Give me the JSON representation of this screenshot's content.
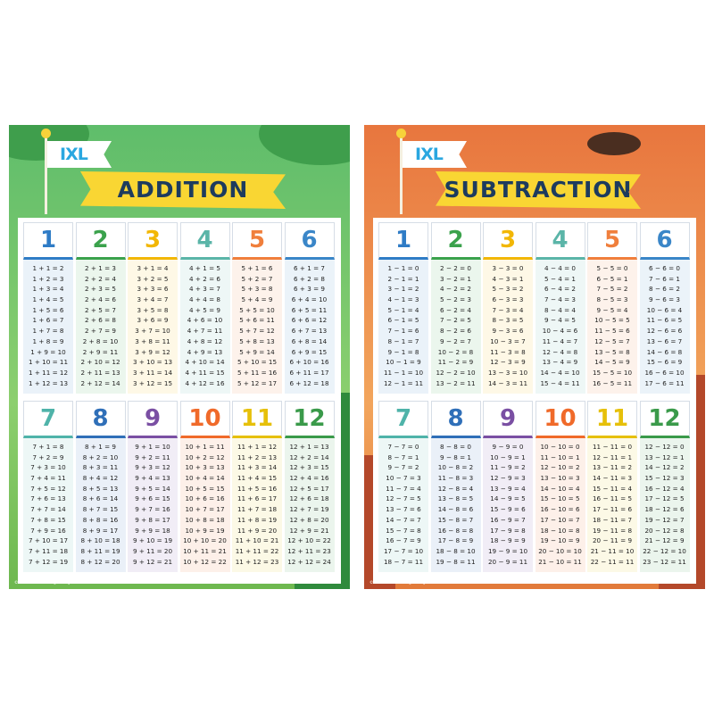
{
  "posters": [
    {
      "brand": "IXL",
      "title": "ADDITION",
      "copyright": "© 2024 IXL Learning. All rights reserved.",
      "tables": [
        {
          "number": 1,
          "facts": [
            "1 + 1 = 2",
            "1 + 2 = 3",
            "1 + 3 = 4",
            "1 + 4 = 5",
            "1 + 5 = 6",
            "1 + 6 = 7",
            "1 + 7 = 8",
            "1 + 8 = 9",
            "1 + 9 = 10",
            "1 + 10 = 11",
            "1 + 11 = 12",
            "1 + 12 = 13"
          ]
        },
        {
          "number": 2,
          "facts": [
            "2 + 1 = 3",
            "2 + 2 = 4",
            "2 + 3 = 5",
            "2 + 4 = 6",
            "2 + 5 = 7",
            "2 + 6 = 8",
            "2 + 7 = 9",
            "2 + 8 = 10",
            "2 + 9 = 11",
            "2 + 10 = 12",
            "2 + 11 = 13",
            "2 + 12 = 14"
          ]
        },
        {
          "number": 3,
          "facts": [
            "3 + 1 = 4",
            "3 + 2 = 5",
            "3 + 3 = 6",
            "3 + 4 = 7",
            "3 + 5 = 8",
            "3 + 6 = 9",
            "3 + 7 = 10",
            "3 + 8 = 11",
            "3 + 9 = 12",
            "3 + 10 = 13",
            "3 + 11 = 14",
            "3 + 12 = 15"
          ]
        },
        {
          "number": 4,
          "facts": [
            "4 + 1 = 5",
            "4 + 2 = 6",
            "4 + 3 = 7",
            "4 + 4 = 8",
            "4 + 5 = 9",
            "4 + 6 = 10",
            "4 + 7 = 11",
            "4 + 8 = 12",
            "4 + 9 = 13",
            "4 + 10 = 14",
            "4 + 11 = 15",
            "4 + 12 = 16"
          ]
        },
        {
          "number": 5,
          "facts": [
            "5 + 1 = 6",
            "5 + 2 = 7",
            "5 + 3 = 8",
            "5 + 4 = 9",
            "5 + 5 = 10",
            "5 + 6 = 11",
            "5 + 7 = 12",
            "5 + 8 = 13",
            "5 + 9 = 14",
            "5 + 10 = 15",
            "5 + 11 = 16",
            "5 + 12 = 17"
          ]
        },
        {
          "number": 6,
          "facts": [
            "6 + 1 = 7",
            "6 + 2 = 8",
            "6 + 3 = 9",
            "6 + 4 = 10",
            "6 + 5 = 11",
            "6 + 6 = 12",
            "6 + 7 = 13",
            "6 + 8 = 14",
            "6 + 9 = 15",
            "6 + 10 = 16",
            "6 + 11 = 17",
            "6 + 12 = 18"
          ]
        },
        {
          "number": 7,
          "facts": [
            "7 + 1 = 8",
            "7 + 2 = 9",
            "7 + 3 = 10",
            "7 + 4 = 11",
            "7 + 5 = 12",
            "7 + 6 = 13",
            "7 + 7 = 14",
            "7 + 8 = 15",
            "7 + 9 = 16",
            "7 + 10 = 17",
            "7 + 11 = 18",
            "7 + 12 = 19"
          ]
        },
        {
          "number": 8,
          "facts": [
            "8 + 1 = 9",
            "8 + 2 = 10",
            "8 + 3 = 11",
            "8 + 4 = 12",
            "8 + 5 = 13",
            "8 + 6 = 14",
            "8 + 7 = 15",
            "8 + 8 = 16",
            "8 + 9 = 17",
            "8 + 10 = 18",
            "8 + 11 = 19",
            "8 + 12 = 20"
          ]
        },
        {
          "number": 9,
          "facts": [
            "9 + 1 = 10",
            "9 + 2 = 11",
            "9 + 3 = 12",
            "9 + 4 = 13",
            "9 + 5 = 14",
            "9 + 6 = 15",
            "9 + 7 = 16",
            "9 + 8 = 17",
            "9 + 9 = 18",
            "9 + 10 = 19",
            "9 + 11 = 20",
            "9 + 12 = 21"
          ]
        },
        {
          "number": 10,
          "facts": [
            "10 + 1 = 11",
            "10 + 2 = 12",
            "10 + 3 = 13",
            "10 + 4 = 14",
            "10 + 5 = 15",
            "10 + 6 = 16",
            "10 + 7 = 17",
            "10 + 8 = 18",
            "10 + 9 = 19",
            "10 + 10 = 20",
            "10 + 11 = 21",
            "10 + 12 = 22"
          ]
        },
        {
          "number": 11,
          "facts": [
            "11 + 1 = 12",
            "11 + 2 = 13",
            "11 + 3 = 14",
            "11 + 4 = 15",
            "11 + 5 = 16",
            "11 + 6 = 17",
            "11 + 7 = 18",
            "11 + 8 = 19",
            "11 + 9 = 20",
            "11 + 10 = 21",
            "11 + 11 = 22",
            "11 + 12 = 23"
          ]
        },
        {
          "number": 12,
          "facts": [
            "12 + 1 = 13",
            "12 + 2 = 14",
            "12 + 3 = 15",
            "12 + 4 = 16",
            "12 + 5 = 17",
            "12 + 6 = 18",
            "12 + 7 = 19",
            "12 + 8 = 20",
            "12 + 9 = 21",
            "12 + 10 = 22",
            "12 + 11 = 23",
            "12 + 12 = 24"
          ]
        }
      ]
    },
    {
      "brand": "IXL",
      "title": "SUBTRACTION",
      "copyright": "© 2024 IXL Learning. All rights reserved.",
      "tables": [
        {
          "number": 1,
          "facts": [
            "1 − 1 = 0",
            "2 − 1 = 1",
            "3 − 1 = 2",
            "4 − 1 = 3",
            "5 − 1 = 4",
            "6 − 1 = 5",
            "7 − 1 = 6",
            "8 − 1 = 7",
            "9 − 1 = 8",
            "10 − 1 = 9",
            "11 − 1 = 10",
            "12 − 1 = 11"
          ]
        },
        {
          "number": 2,
          "facts": [
            "2 − 2 = 0",
            "3 − 2 = 1",
            "4 − 2 = 2",
            "5 − 2 = 3",
            "6 − 2 = 4",
            "7 − 2 = 5",
            "8 − 2 = 6",
            "9 − 2 = 7",
            "10 − 2 = 8",
            "11 − 2 = 9",
            "12 − 2 = 10",
            "13 − 2 = 11"
          ]
        },
        {
          "number": 3,
          "facts": [
            "3 − 3 = 0",
            "4 − 3 = 1",
            "5 − 3 = 2",
            "6 − 3 = 3",
            "7 − 3 = 4",
            "8 − 3 = 5",
            "9 − 3 = 6",
            "10 − 3 = 7",
            "11 − 3 = 8",
            "12 − 3 = 9",
            "13 − 3 = 10",
            "14 − 3 = 11"
          ]
        },
        {
          "number": 4,
          "facts": [
            "4 − 4 = 0",
            "5 − 4 = 1",
            "6 − 4 = 2",
            "7 − 4 = 3",
            "8 − 4 = 4",
            "9 − 4 = 5",
            "10 − 4 = 6",
            "11 − 4 = 7",
            "12 − 4 = 8",
            "13 − 4 = 9",
            "14 − 4 = 10",
            "15 − 4 = 11"
          ]
        },
        {
          "number": 5,
          "facts": [
            "5 − 5 = 0",
            "6 − 5 = 1",
            "7 − 5 = 2",
            "8 − 5 = 3",
            "9 − 5 = 4",
            "10 − 5 = 5",
            "11 − 5 = 6",
            "12 − 5 = 7",
            "13 − 5 = 8",
            "14 − 5 = 9",
            "15 − 5 = 10",
            "16 − 5 = 11"
          ]
        },
        {
          "number": 6,
          "facts": [
            "6 − 6 = 0",
            "7 − 6 = 1",
            "8 − 6 = 2",
            "9 − 6 = 3",
            "10 − 6 = 4",
            "11 − 6 = 5",
            "12 − 6 = 6",
            "13 − 6 = 7",
            "14 − 6 = 8",
            "15 − 6 = 9",
            "16 − 6 = 10",
            "17 − 6 = 11"
          ]
        },
        {
          "number": 7,
          "facts": [
            "7 − 7 = 0",
            "8 − 7 = 1",
            "9 − 7 = 2",
            "10 − 7 = 3",
            "11 − 7 = 4",
            "12 − 7 = 5",
            "13 − 7 = 6",
            "14 − 7 = 7",
            "15 − 7 = 8",
            "16 − 7 = 9",
            "17 − 7 = 10",
            "18 − 7 = 11"
          ]
        },
        {
          "number": 8,
          "facts": [
            "8 − 8 = 0",
            "9 − 8 = 1",
            "10 − 8 = 2",
            "11 − 8 = 3",
            "12 − 8 = 4",
            "13 − 8 = 5",
            "14 − 8 = 6",
            "15 − 8 = 7",
            "16 − 8 = 8",
            "17 − 8 = 9",
            "18 − 8 = 10",
            "19 − 8 = 11"
          ]
        },
        {
          "number": 9,
          "facts": [
            "9 − 9 = 0",
            "10 − 9 = 1",
            "11 − 9 = 2",
            "12 − 9 = 3",
            "13 − 9 = 4",
            "14 − 9 = 5",
            "15 − 9 = 6",
            "16 − 9 = 7",
            "17 − 9 = 8",
            "18 − 9 = 9",
            "19 − 9 = 10",
            "20 − 9 = 11"
          ]
        },
        {
          "number": 10,
          "facts": [
            "10 − 10 = 0",
            "11 − 10 = 1",
            "12 − 10 = 2",
            "13 − 10 = 3",
            "14 − 10 = 4",
            "15 − 10 = 5",
            "16 − 10 = 6",
            "17 − 10 = 7",
            "18 − 10 = 8",
            "19 − 10 = 9",
            "20 − 10 = 10",
            "21 − 10 = 11"
          ]
        },
        {
          "number": 11,
          "facts": [
            "11 − 11 = 0",
            "12 − 11 = 1",
            "13 − 11 = 2",
            "14 − 11 = 3",
            "15 − 11 = 4",
            "16 − 11 = 5",
            "17 − 11 = 6",
            "18 − 11 = 7",
            "19 − 11 = 8",
            "20 − 11 = 9",
            "21 − 11 = 10",
            "22 − 11 = 11"
          ]
        },
        {
          "number": 12,
          "facts": [
            "12 − 12 = 0",
            "13 − 12 = 1",
            "14 − 12 = 2",
            "15 − 12 = 3",
            "16 − 12 = 4",
            "17 − 12 = 5",
            "18 − 12 = 6",
            "19 − 12 = 7",
            "20 − 12 = 8",
            "21 − 12 = 9",
            "22 − 12 = 10",
            "23 − 12 = 11"
          ]
        }
      ]
    }
  ]
}
